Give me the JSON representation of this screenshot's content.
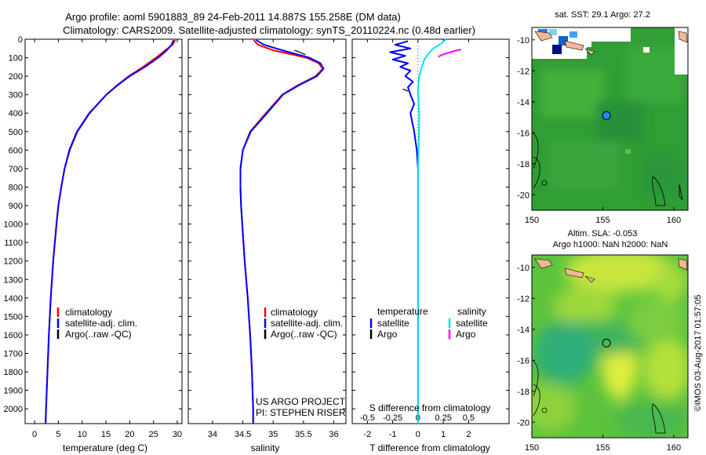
{
  "figure": {
    "title_line1": "Argo profile: aoml 5901883_89 24-Feb-2011 14.887S 155.258E (DM data)",
    "title_line2": "Climatology: CARS2009. Satellite-adjusted climatology: synTS_20110224.nc (0.48d earlier)",
    "credit_line1": "US ARGO PROJECT",
    "credit_line2": "PI: STEPHEN RISER",
    "watermark": "©IMOS 03-Aug-2017 01:57:05"
  },
  "colors": {
    "red": "#ff0000",
    "blue": "#0000ff",
    "black": "#000000",
    "cyan": "#00e5ee",
    "magenta": "#ff00ff",
    "land": "#f4b894"
  },
  "chart_data": [
    {
      "type": "line",
      "id": "temperature",
      "xlabel": "temperature (deg C)",
      "ylabel": "",
      "xlim": [
        -2,
        31
      ],
      "ylim": [
        2080,
        0
      ],
      "xticks": [
        0,
        5,
        10,
        15,
        20,
        25,
        30
      ],
      "xticklabels": [
        "0",
        "5",
        "10",
        "15",
        "20",
        "25",
        "30"
      ],
      "yticks": [
        0,
        100,
        200,
        300,
        400,
        500,
        600,
        700,
        800,
        900,
        1000,
        1100,
        1200,
        1300,
        1400,
        1500,
        1600,
        1700,
        1800,
        1900,
        2000
      ],
      "yticklabels": [
        "0",
        "100",
        "200",
        "300",
        "400",
        "500",
        "600",
        "700",
        "800",
        "900",
        "1000",
        "1100",
        "1200",
        "1300",
        "1400",
        "1500",
        "1600",
        "1700",
        "1800",
        "1900",
        "2000"
      ],
      "legend": [
        "climatology",
        "satellite-adj. clim.",
        "Argo(..raw -QC)"
      ],
      "series": [
        {
          "name": "climatology",
          "color": "red",
          "depth": [
            5,
            30,
            60,
            100,
            150,
            200,
            250,
            300,
            400,
            500,
            600,
            700,
            800,
            900,
            1000,
            1200,
            1400,
            1600,
            1800,
            2000,
            2080
          ],
          "values": [
            29.6,
            29.0,
            27.5,
            25.5,
            22.8,
            19.8,
            17.3,
            15.1,
            11.6,
            9.0,
            7.4,
            6.3,
            5.6,
            5.0,
            4.6,
            3.9,
            3.4,
            3.0,
            2.7,
            2.4,
            2.3
          ]
        },
        {
          "name": "satellite-adj. clim.",
          "color": "blue",
          "depth": [
            5,
            30,
            60,
            100,
            150,
            200,
            250,
            300,
            400,
            500,
            600,
            700,
            800,
            900,
            1000,
            1200,
            1400,
            1600,
            1800,
            2000,
            2080
          ],
          "values": [
            29.2,
            28.8,
            27.8,
            26.0,
            23.2,
            20.0,
            17.4,
            15.1,
            11.5,
            8.9,
            7.3,
            6.3,
            5.6,
            5.0,
            4.6,
            3.9,
            3.4,
            3.0,
            2.7,
            2.4,
            2.3
          ]
        }
      ]
    },
    {
      "type": "line",
      "id": "salinity",
      "xlabel": "salinity",
      "ylabel": "",
      "xlim": [
        33.6,
        36.2
      ],
      "ylim": [
        2080,
        0
      ],
      "xticks": [
        34,
        34.5,
        35,
        35.5,
        36
      ],
      "xticklabels": [
        "34",
        "34.5",
        "35",
        "35.5",
        "36"
      ],
      "legend": [
        "climatology",
        "satellite-adj. clim.",
        "Argo(..raw -QC)"
      ],
      "series": [
        {
          "name": "climatology",
          "color": "red",
          "depth": [
            5,
            30,
            60,
            100,
            130,
            160,
            200,
            250,
            300,
            400,
            500,
            600,
            700,
            800,
            900,
            1000,
            1200,
            1400,
            1600,
            1800,
            2000,
            2080
          ],
          "values": [
            34.68,
            34.75,
            35.0,
            35.55,
            35.75,
            35.82,
            35.7,
            35.4,
            35.15,
            34.88,
            34.62,
            34.5,
            34.46,
            34.46,
            34.47,
            34.49,
            34.53,
            34.58,
            34.62,
            34.65,
            34.67,
            34.67
          ]
        },
        {
          "name": "satellite-adj. clim.",
          "color": "blue",
          "depth": [
            5,
            30,
            60,
            100,
            130,
            160,
            200,
            250,
            300,
            400,
            500,
            600,
            700,
            800,
            900,
            1000,
            1200,
            1400,
            1600,
            1800,
            2000,
            2080
          ],
          "values": [
            34.72,
            34.85,
            35.15,
            35.6,
            35.78,
            35.83,
            35.72,
            35.42,
            35.16,
            34.9,
            34.63,
            34.5,
            34.46,
            34.46,
            34.47,
            34.49,
            34.53,
            34.58,
            34.62,
            34.65,
            34.67,
            34.67
          ]
        },
        {
          "name": "Argo",
          "color": "black",
          "depth": [
            60,
            68,
            76,
            84
          ],
          "values": [
            35.35,
            35.42,
            35.48,
            35.53
          ]
        }
      ]
    },
    {
      "type": "line",
      "id": "difference",
      "xlabel": "T difference from climatology",
      "xlabel_top": "S difference from climatology",
      "xlim": [
        -2.6,
        3.6
      ],
      "ylim": [
        2080,
        0
      ],
      "xticks": [
        -2,
        -1,
        0,
        1,
        2
      ],
      "xticklabels": [
        "-2",
        "-1",
        "0",
        "1",
        "2"
      ],
      "sticklabels": [
        "-0.5",
        "-0.25",
        "0",
        "0.25",
        "0.5"
      ],
      "legend_titles": [
        "temperature",
        "salinity"
      ],
      "legend": [
        "satellite",
        "Argo",
        "satellite",
        "Argo"
      ],
      "series": [
        {
          "name": "temperature satellite",
          "color": "blue",
          "depth": [
            10,
            30,
            50,
            70,
            90,
            110,
            130,
            150,
            170,
            200,
            230,
            260,
            300,
            350,
            400,
            500,
            600,
            700,
            800,
            1000,
            1200,
            1500,
            1800,
            2080
          ],
          "values": [
            -0.4,
            -0.9,
            -0.3,
            -1.1,
            -0.5,
            -1.0,
            -0.4,
            -0.7,
            -0.3,
            -0.5,
            -0.2,
            -0.4,
            -0.3,
            -0.15,
            -0.3,
            -0.15,
            -0.05,
            0.0,
            0.0,
            0.0,
            0.0,
            0.0,
            0.0,
            0.0
          ]
        },
        {
          "name": "salinity satellite",
          "color": "cyan",
          "depth": [
            0,
            20,
            50,
            80,
            110,
            150,
            200,
            260,
            300,
            400,
            500,
            600,
            700,
            800,
            1000,
            1200,
            1500,
            1800,
            2080
          ],
          "values": [
            1.1,
            0.95,
            0.6,
            0.4,
            0.25,
            0.15,
            0.05,
            0.0,
            0.0,
            0.05,
            0.04,
            0.02,
            0.0,
            0.0,
            0.0,
            0.0,
            0.0,
            0.0,
            0.0
          ]
        },
        {
          "name": "salinity Argo",
          "color": "magenta",
          "depth": [
            55,
            65,
            75,
            85,
            95
          ],
          "values": [
            1.7,
            1.4,
            1.15,
            0.95,
            0.8
          ]
        },
        {
          "name": "temperature Argo",
          "color": "black",
          "depth": [
            270,
            280
          ],
          "values": [
            -0.6,
            -0.4
          ]
        }
      ]
    },
    {
      "type": "heatmap",
      "id": "sst-map",
      "title": "sat. SST: 29.1  Argo: 27.2",
      "xlim": [
        150,
        161
      ],
      "ylim": [
        -21,
        -9.2
      ],
      "xticks": [
        150,
        155,
        160
      ],
      "xticklabels": [
        "150",
        "155",
        "160"
      ],
      "yticks": [
        -10,
        -12,
        -14,
        -16,
        -18,
        -20
      ],
      "yticklabels": [
        "-10",
        "-12",
        "-14",
        "-16",
        "-18",
        "-20"
      ],
      "marker": {
        "lon": 155.258,
        "lat": -14.887
      }
    },
    {
      "type": "heatmap",
      "id": "sla-map",
      "title_line1": "Altim. SLA: -0.053",
      "title_line2": "Argo h1000: NaN h2000: NaN",
      "xlim": [
        150,
        161
      ],
      "ylim": [
        -21,
        -9.2
      ],
      "xticks": [
        150,
        155,
        160
      ],
      "xticklabels": [
        "150",
        "155",
        "160"
      ],
      "yticks": [
        -10,
        -12,
        -14,
        -16,
        -18,
        -20
      ],
      "yticklabels": [
        "-10",
        "-12",
        "-14",
        "-16",
        "-18",
        "-20"
      ],
      "marker": {
        "lon": 155.258,
        "lat": -14.887
      }
    }
  ]
}
